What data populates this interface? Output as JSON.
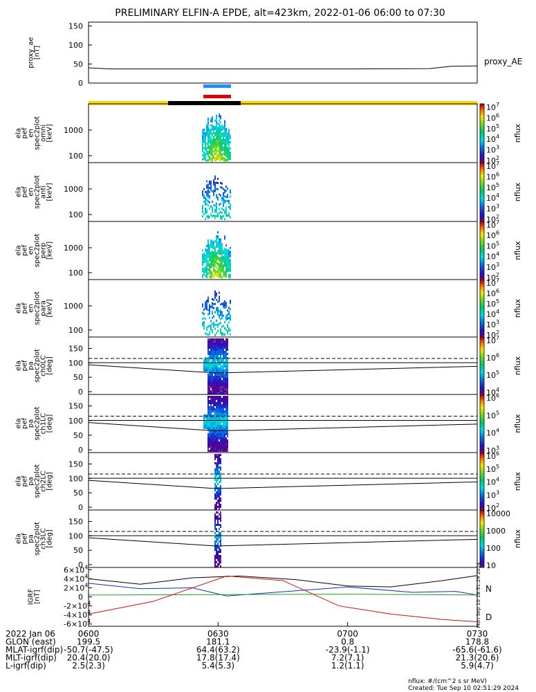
{
  "title": "PRELIMINARY ELFIN-A EPDE, alt=423km, 2022-01-06 06:00 to 07:30",
  "chart_data": {
    "type": "spectrogram",
    "time_range": [
      "06:00",
      "07:30"
    ],
    "x_ticks": [
      "0600",
      "0630",
      "0700",
      "0730"
    ],
    "panels": [
      {
        "kind": "line",
        "ylabel": [
          "proxy_ae",
          "[nT]"
        ],
        "yticks": [
          "0",
          "50",
          "100",
          "150"
        ],
        "ylim": [
          0,
          160
        ],
        "series": [
          {
            "name": "proxy_AE",
            "x": [
              "06:00",
              "06:05",
              "06:30",
              "07:00",
              "07:19",
              "07:24",
              "07:30"
            ],
            "y": [
              40,
              37,
              37,
              37,
              38,
              44,
              45
            ]
          }
        ]
      },
      {
        "kind": "spectrogram",
        "ylabel": [
          "ela",
          "pef",
          "en",
          "spec2plot",
          "omni",
          "[keV]"
        ],
        "yticks": [
          "100",
          "1000"
        ],
        "colorbar": {
          "label": "nflux",
          "ticks": [
            "10^2",
            "10^3",
            "10^4",
            "10^5",
            "10^6",
            "10^7"
          ]
        }
      },
      {
        "kind": "spectrogram",
        "ylabel": [
          "ela",
          "pef",
          "en",
          "spec2plot",
          "anti",
          "[keV]"
        ],
        "yticks": [
          "100",
          "1000"
        ],
        "colorbar": {
          "label": "nflux",
          "ticks": [
            "10^2",
            "10^3",
            "10^4",
            "10^5",
            "10^6",
            "10^7"
          ]
        }
      },
      {
        "kind": "spectrogram",
        "ylabel": [
          "ela",
          "pef",
          "en",
          "spec2plot",
          "perp",
          "[keV]"
        ],
        "yticks": [
          "100",
          "1000"
        ],
        "colorbar": {
          "label": "nflux",
          "ticks": [
            "10^2",
            "10^3",
            "10^4",
            "10^5",
            "10^6",
            "10^7"
          ]
        }
      },
      {
        "kind": "spectrogram",
        "ylabel": [
          "ela",
          "pef",
          "en",
          "spec2plot",
          "para",
          "[keV]"
        ],
        "yticks": [
          "100",
          "1000"
        ],
        "colorbar": {
          "label": "nflux",
          "ticks": [
            "10^2",
            "10^3",
            "10^4",
            "10^5",
            "10^6",
            "10^7"
          ]
        }
      },
      {
        "kind": "pitch",
        "ylabel": [
          "ela",
          "pef",
          "pa",
          "spec2plot",
          "ch0LC",
          "[deg]"
        ],
        "yticks": [
          "0",
          "50",
          "100",
          "150"
        ],
        "colorbar": {
          "label": "nflux",
          "ticks": [
            "10^4",
            "10^5",
            "10^6",
            "10^7"
          ]
        }
      },
      {
        "kind": "pitch",
        "ylabel": [
          "ela",
          "pef",
          "pa",
          "spec2plot",
          "ch1LC",
          "[deg]"
        ],
        "yticks": [
          "0",
          "50",
          "100",
          "150"
        ],
        "colorbar": {
          "label": "nflux",
          "ticks": [
            "10^3",
            "10^4",
            "10^5",
            "10^6"
          ]
        }
      },
      {
        "kind": "pitch",
        "ylabel": [
          "ela",
          "pef",
          "pa",
          "spec2plot",
          "ch2LC",
          "[deg]"
        ],
        "yticks": [
          "0",
          "50",
          "100",
          "150"
        ],
        "colorbar": {
          "label": "nflux",
          "ticks": [
            "10^2",
            "10^3",
            "10^4",
            "10^5",
            "10^6"
          ]
        }
      },
      {
        "kind": "pitch",
        "ylabel": [
          "ela",
          "pef",
          "pa",
          "spec2plot",
          "ch3LC",
          "[deg]"
        ],
        "yticks": [
          "0",
          "50",
          "100",
          "150"
        ],
        "colorbar": {
          "label": "nflux",
          "ticks": [
            "10",
            "100",
            "1000",
            "10000"
          ]
        }
      },
      {
        "kind": "line",
        "ylabel": [
          "IGRF",
          "[nT]"
        ],
        "yticks": [
          "-6×10^4",
          "-4×10^4",
          "-2×10^4",
          "0",
          "2×10^4",
          "4×10^4",
          "6×10^4"
        ],
        "ylim": [
          -65000,
          65000
        ],
        "series": [
          {
            "name": "",
            "color": "#000000",
            "x": [
              "06:00",
              "06:12",
              "06:24",
              "06:35",
              "06:48",
              "07:00",
              "07:10",
              "07:22",
              "07:30"
            ],
            "y": [
              40000,
              28000,
              42000,
              46000,
              38000,
              24000,
              22000,
              36000,
              47000
            ]
          },
          {
            "name": "N",
            "color": "#1030c0",
            "x": [
              "06:00",
              "06:12",
              "06:24",
              "06:32",
              "07:00",
              "07:15",
              "07:25",
              "07:30"
            ],
            "y": [
              30000,
              18000,
              20000,
              2000,
              22000,
              10000,
              12000,
              4000
            ]
          },
          {
            "name": "",
            "color": "#20a020",
            "x": [
              "06:00",
              "06:30",
              "07:00",
              "07:30"
            ],
            "y": [
              4000,
              5000,
              6000,
              4000
            ]
          },
          {
            "name": "D",
            "color": "#d01010",
            "x": [
              "06:00",
              "06:15",
              "06:32",
              "06:45",
              "06:58",
              "07:10",
              "07:22",
              "07:30"
            ],
            "y": [
              -38000,
              -10000,
              46000,
              36000,
              -20000,
              -38000,
              -50000,
              -55000
            ]
          }
        ]
      }
    ],
    "orbit_bar": {
      "colors": {
        "dayside": "#ffd700",
        "nightside": "#000000"
      }
    },
    "science_zone_bars": {
      "colors": [
        "#1e90ff",
        "#dd0000"
      ]
    },
    "footer": {
      "rows": [
        {
          "label": "2022 Jan 06",
          "values": [
            "0600",
            "0630",
            "0700",
            "0730"
          ]
        },
        {
          "label": "GLON (east)",
          "values": [
            "199.5",
            "181.1",
            "0.8",
            "178.8"
          ]
        },
        {
          "label": "MLAT-igrf(dip)",
          "values": [
            "-50.7(-47.5)",
            "64.4(63.2)",
            "-23.9(-1.1)",
            "-65.6(-61.6)"
          ]
        },
        {
          "label": "MLT-igrf(dip)",
          "values": [
            "20.4(20.0)",
            "17.8(17.4)",
            "7.2(7.1)",
            "21.3(20.6)"
          ]
        },
        {
          "label": "L-igrf(dip)",
          "values": [
            "2.5(2.3)",
            "5.4(5.3)",
            "1.2(1.1)",
            "5.9(4.7)"
          ]
        }
      ],
      "note1": "nflux: #/(cm^2 s sr MeV)",
      "note2": "Created: Tue Sep 10 02:51:29 2024"
    },
    "side_stamp": "Mon Sep 10 18:51:29 2024"
  }
}
